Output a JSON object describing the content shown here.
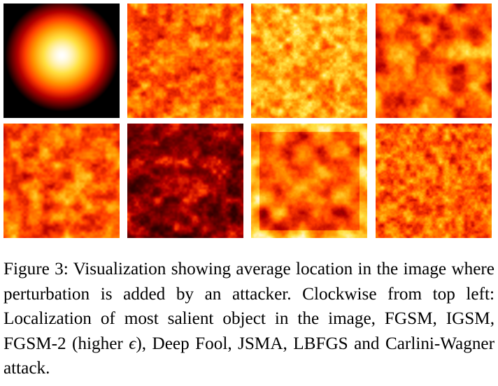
{
  "figure": {
    "heatmaps": [
      {
        "name": "Localization of most salient object",
        "style": "centered-glow"
      },
      {
        "name": "FGSM",
        "style": "noise-orange"
      },
      {
        "name": "IGSM",
        "style": "noise-yellow"
      },
      {
        "name": "FGSM-2 (higher ε)",
        "style": "blobs-dark"
      },
      {
        "name": "Carlini-Wagner",
        "style": "noise-orange-fine"
      },
      {
        "name": "LBFGS",
        "style": "frame-pattern"
      },
      {
        "name": "JSMA",
        "style": "sparse-dark"
      },
      {
        "name": "Deep Fool",
        "style": "patchy-orange"
      }
    ],
    "colormap": [
      "#000000",
      "#5a0000",
      "#b40000",
      "#ff3c00",
      "#ff9600",
      "#ffe040",
      "#ffffff"
    ]
  },
  "caption": {
    "part1": "Figure 3: Visualization showing average location in the image where perturbation is added by an attacker. Clockwise from top left: Localization of most salient object in the image, FGSM, IGSM, FGSM-2 (higher ",
    "epsilon": "ϵ",
    "part2": "), Deep Fool, JSMA, LBFGS and Carlini-Wagner attack."
  }
}
